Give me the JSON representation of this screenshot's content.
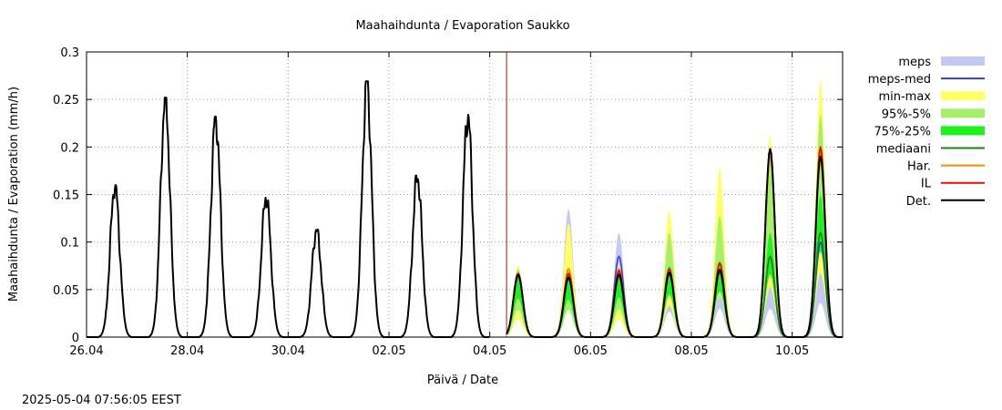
{
  "chart_data": {
    "type": "line",
    "title": "Maahaihdunta / Evaporation  Saukko",
    "xlabel": "Päivä / Date",
    "ylabel": "Maahaihdunta / Evaporation (mm/h)",
    "timestamp": "2025-05-04 07:56:05 EEST",
    "x_range_days": [
      "26.04 00:00",
      "11.05 00:00"
    ],
    "ylim": [
      0,
      0.3
    ],
    "y_ticks": [
      0,
      0.05,
      0.1,
      0.15,
      0.2,
      0.25,
      0.3
    ],
    "y_tick_labels": [
      "0",
      "0.05",
      "0.1",
      "0.15",
      "0.2",
      "0.25",
      "0.3"
    ],
    "x_tick_labels": [
      "26.04",
      "28.04",
      "30.04",
      "02.05",
      "04.05",
      "06.05",
      "08.05",
      "10.05"
    ],
    "grid": true,
    "legend_position": "right",
    "forecast_start": "04.05 08:00",
    "legend": [
      {
        "label": "meps",
        "kind": "band",
        "color": "#c3c8f5"
      },
      {
        "label": "meps-med",
        "kind": "line",
        "color": "#3a3acc"
      },
      {
        "label": "min-max",
        "kind": "band",
        "color": "#ffff66"
      },
      {
        "label": "95%-5%",
        "kind": "band",
        "color": "#a6ef6a"
      },
      {
        "label": "75%-25%",
        "kind": "band",
        "color": "#1ef21e"
      },
      {
        "label": "mediaani",
        "kind": "line",
        "color": "#1d801d"
      },
      {
        "label": "Har.",
        "kind": "line",
        "color": "#ff8a00"
      },
      {
        "label": "IL",
        "kind": "line",
        "color": "#e01010"
      },
      {
        "label": "Det.",
        "kind": "line",
        "color": "#000000"
      }
    ],
    "observed_daily_peaks": [
      {
        "date": "26.04",
        "peak": 0.16
      },
      {
        "date": "27.04",
        "peak": 0.252
      },
      {
        "date": "28.04",
        "peak": 0.232
      },
      {
        "date": "29.04",
        "peak": 0.148
      },
      {
        "date": "30.04",
        "peak": 0.113
      },
      {
        "date": "01.05",
        "peak": 0.269
      },
      {
        "date": "02.05",
        "peak": 0.17
      },
      {
        "date": "03.05",
        "peak": 0.234
      }
    ],
    "forecast_daily": [
      {
        "date": "04.05",
        "meps": 0.075,
        "meps_med": 0.068,
        "minmax": 0.075,
        "p95": 0.072,
        "p75": 0.068,
        "mediaani": 0.064,
        "har": 0.068,
        "il": 0.065,
        "det": 0.066
      },
      {
        "date": "05.05",
        "meps": 0.135,
        "meps_med": 0.072,
        "minmax": 0.12,
        "p95": 0.072,
        "p75": 0.066,
        "mediaani": 0.061,
        "har": 0.072,
        "il": 0.067,
        "det": 0.063
      },
      {
        "date": "06.05",
        "meps": 0.11,
        "meps_med": 0.085,
        "minmax": 0.076,
        "p95": 0.074,
        "p75": 0.07,
        "mediaani": 0.064,
        "har": 0.072,
        "il": 0.07,
        "det": 0.066
      },
      {
        "date": "07.05",
        "meps": 0.09,
        "meps_med": 0.072,
        "minmax": 0.133,
        "p95": 0.11,
        "p75": 0.075,
        "mediaani": 0.066,
        "har": 0.072,
        "il": 0.072,
        "det": 0.068
      },
      {
        "date": "08.05",
        "meps": 0.1,
        "meps_med": 0.078,
        "minmax": 0.178,
        "p95": 0.128,
        "p75": 0.08,
        "mediaani": 0.068,
        "har": 0.074,
        "il": 0.078,
        "det": 0.071
      },
      {
        "date": "09.05",
        "meps": 0.1,
        "meps_med": 0.085,
        "minmax": 0.212,
        "p95": 0.195,
        "p75": 0.11,
        "mediaani": 0.085,
        "har": 0.19,
        "il": 0.198,
        "det": 0.198
      },
      {
        "date": "10.05",
        "meps": 0.12,
        "meps_med": 0.1,
        "minmax": 0.27,
        "p95": 0.235,
        "p75": 0.15,
        "mediaani": 0.11,
        "har": 0.195,
        "il": 0.2,
        "det": 0.19
      }
    ]
  }
}
